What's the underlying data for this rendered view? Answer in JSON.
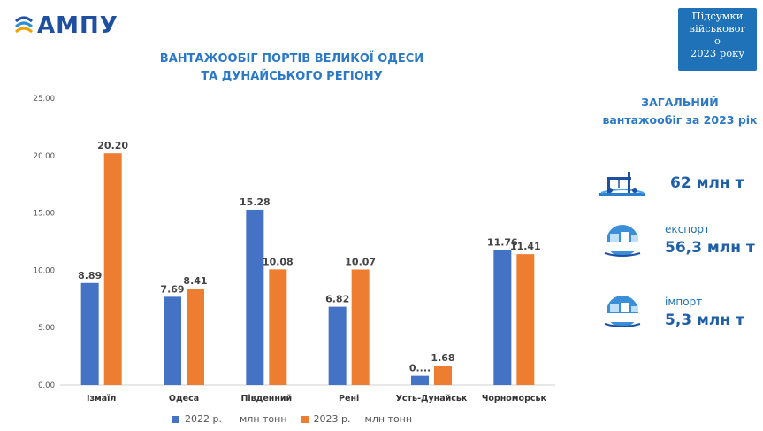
{
  "brand": {
    "logo_text": "АМПУ"
  },
  "summary_box": {
    "lines": [
      "Підсумки",
      "військовог",
      "о",
      "2023 року"
    ]
  },
  "right_panel": {
    "title_line1": "ЗАГАЛЬНИЙ",
    "title_line2": "вантажообіг за 2023 рік",
    "total": {
      "value": "62 млн т",
      "icon": "port-crane-icon"
    },
    "export": {
      "label": "експорт",
      "value": "56,3 млн т",
      "icon": "cargo-ship-icon"
    },
    "import": {
      "label": "імпорт",
      "value": "5,3 млн т",
      "icon": "cargo-ship-icon"
    }
  },
  "colors": {
    "series_2022": "#4472c4",
    "series_2023": "#ed7d31",
    "accent": "#2a78c6",
    "box": "#1f72b8"
  },
  "chart_data": {
    "type": "bar",
    "title_line1": "ВАНТАЖООБІГ ПОРТІВ ВЕЛИКОЇ ОДЕСИ",
    "title_line2": "ТА ДУНАЙСЬКОГО РЕГІОНУ",
    "categories": [
      "Ізмаїл",
      "Одеса",
      "Південний",
      "Рені",
      "Усть-Дунайськ",
      "Чорноморськ"
    ],
    "series": [
      {
        "name": "2022 р.",
        "unit": "млн тонн",
        "values": [
          8.89,
          7.69,
          15.28,
          6.82,
          0.8,
          11.76
        ],
        "labels": [
          "8.89",
          "7.69",
          "15.28",
          "6.82",
          "0....",
          "11.76"
        ]
      },
      {
        "name": "2023 р.",
        "unit": "млн тонн",
        "values": [
          20.2,
          8.41,
          10.08,
          10.07,
          1.68,
          11.41
        ],
        "labels": [
          "20.20",
          "8.41",
          "10.08",
          "10.07",
          "1.68",
          "11.41"
        ]
      }
    ],
    "yticks": [
      "0.00",
      "5.00",
      "10.00",
      "15.00",
      "20.00",
      "25.00"
    ],
    "ylim": [
      0,
      25
    ],
    "grid": false,
    "legend_position": "bottom"
  }
}
